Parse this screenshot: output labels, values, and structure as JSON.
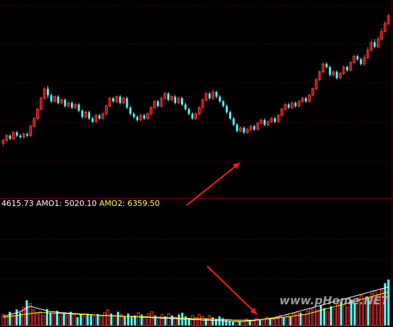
{
  "legend": {
    "vol_value": "4615.73",
    "amo1_label": "AMO1:",
    "amo1_value": "5020.10",
    "amo2_label": "AMO2:",
    "amo2_value": "6359.50"
  },
  "watermark": "www.pHome.NET",
  "colors": {
    "background": "#000000",
    "up": "#ff3232",
    "down": "#54fcfc",
    "ma1": "#ffffff",
    "ma2": "#ffff00",
    "grid": "#7a0000",
    "arrow": "#ff1a1a",
    "legend_text": "#ffffff",
    "legend_amo2": "#ffff54"
  },
  "chart_data": [
    {
      "type": "candlestick",
      "title": "",
      "y_range": [
        0,
        100
      ],
      "grid": "horizontal dotted",
      "annotation": "red arrow pointing at local low",
      "candles": [
        [
          17,
          19,
          15,
          20
        ],
        [
          19,
          22,
          18,
          23
        ],
        [
          22,
          20,
          19,
          23
        ],
        [
          20,
          24,
          19,
          25
        ],
        [
          24,
          22,
          21,
          25
        ],
        [
          22,
          21,
          20,
          23
        ],
        [
          21,
          23,
          20,
          24
        ],
        [
          23,
          22,
          21,
          24
        ],
        [
          22,
          28,
          21,
          29
        ],
        [
          28,
          33,
          27,
          34
        ],
        [
          33,
          39,
          32,
          40
        ],
        [
          39,
          46,
          38,
          47
        ],
        [
          46,
          52,
          45,
          53
        ],
        [
          52,
          48,
          46,
          54
        ],
        [
          48,
          44,
          43,
          49
        ],
        [
          44,
          47,
          43,
          48
        ],
        [
          47,
          43,
          42,
          48
        ],
        [
          43,
          45,
          42,
          46
        ],
        [
          45,
          41,
          40,
          46
        ],
        [
          41,
          43,
          40,
          44
        ],
        [
          43,
          40,
          39,
          44
        ],
        [
          40,
          42,
          39,
          43
        ],
        [
          42,
          38,
          37,
          43
        ],
        [
          38,
          34,
          33,
          39
        ],
        [
          34,
          37,
          33,
          38
        ],
        [
          37,
          33,
          32,
          38
        ],
        [
          33,
          31,
          30,
          34
        ],
        [
          31,
          35,
          30,
          36
        ],
        [
          35,
          33,
          32,
          36
        ],
        [
          33,
          36,
          32,
          37
        ],
        [
          36,
          41,
          35,
          42
        ],
        [
          41,
          46,
          40,
          47
        ],
        [
          46,
          44,
          43,
          47
        ],
        [
          44,
          47,
          43,
          48
        ],
        [
          47,
          43,
          42,
          48
        ],
        [
          43,
          46,
          42,
          47
        ],
        [
          46,
          40,
          39,
          47
        ],
        [
          40,
          36,
          35,
          41
        ],
        [
          36,
          34,
          33,
          37
        ],
        [
          34,
          32,
          31,
          35
        ],
        [
          32,
          35,
          31,
          36
        ],
        [
          35,
          33,
          32,
          36
        ],
        [
          33,
          36,
          32,
          37
        ],
        [
          36,
          40,
          35,
          41
        ],
        [
          40,
          44,
          39,
          45
        ],
        [
          44,
          41,
          40,
          45
        ],
        [
          41,
          46,
          40,
          47
        ],
        [
          46,
          49,
          45,
          50
        ],
        [
          49,
          45,
          44,
          50
        ],
        [
          45,
          47,
          44,
          48
        ],
        [
          47,
          43,
          42,
          48
        ],
        [
          43,
          46,
          42,
          47
        ],
        [
          46,
          42,
          41,
          47
        ],
        [
          42,
          39,
          38,
          43
        ],
        [
          39,
          36,
          35,
          40
        ],
        [
          36,
          33,
          32,
          37
        ],
        [
          33,
          36,
          32,
          37
        ],
        [
          36,
          40,
          35,
          41
        ],
        [
          40,
          45,
          39,
          46
        ],
        [
          45,
          49,
          44,
          50
        ],
        [
          49,
          46,
          45,
          50
        ],
        [
          46,
          50,
          45,
          52
        ],
        [
          50,
          47,
          46,
          51
        ],
        [
          47,
          44,
          43,
          48
        ],
        [
          44,
          41,
          40,
          45
        ],
        [
          41,
          37,
          36,
          42
        ],
        [
          37,
          33,
          32,
          38
        ],
        [
          33,
          29,
          28,
          34
        ],
        [
          29,
          25,
          24,
          30
        ],
        [
          25,
          27,
          24,
          28
        ],
        [
          27,
          24,
          23,
          28
        ],
        [
          24,
          26,
          23,
          27
        ],
        [
          26,
          28,
          25,
          29
        ],
        [
          28,
          26,
          25,
          29
        ],
        [
          26,
          30,
          25,
          31
        ],
        [
          30,
          32,
          29,
          33
        ],
        [
          32,
          29,
          28,
          33
        ],
        [
          29,
          31,
          28,
          32
        ],
        [
          31,
          33,
          30,
          34
        ],
        [
          33,
          31,
          30,
          34
        ],
        [
          31,
          35,
          30,
          36
        ],
        [
          35,
          39,
          34,
          40
        ],
        [
          39,
          42,
          38,
          43
        ],
        [
          42,
          40,
          39,
          43
        ],
        [
          40,
          43,
          39,
          44
        ],
        [
          43,
          41,
          40,
          44
        ],
        [
          41,
          44,
          40,
          45
        ],
        [
          44,
          46,
          43,
          47
        ],
        [
          46,
          44,
          43,
          47
        ],
        [
          44,
          48,
          43,
          49
        ],
        [
          48,
          52,
          47,
          53
        ],
        [
          52,
          58,
          51,
          59
        ],
        [
          58,
          63,
          57,
          64
        ],
        [
          63,
          68,
          62,
          69
        ],
        [
          68,
          66,
          65,
          69
        ],
        [
          66,
          61,
          60,
          67
        ],
        [
          61,
          63,
          60,
          64
        ],
        [
          63,
          59,
          58,
          64
        ],
        [
          59,
          62,
          58,
          63
        ],
        [
          62,
          66,
          61,
          67
        ],
        [
          66,
          64,
          63,
          67
        ],
        [
          64,
          69,
          63,
          70
        ],
        [
          69,
          73,
          68,
          74
        ],
        [
          73,
          71,
          70,
          74
        ],
        [
          71,
          68,
          67,
          72
        ],
        [
          68,
          72,
          67,
          74
        ],
        [
          72,
          77,
          71,
          79
        ],
        [
          77,
          82,
          76,
          84
        ],
        [
          82,
          79,
          78,
          84
        ],
        [
          79,
          84,
          78,
          86
        ],
        [
          84,
          89,
          83,
          91
        ],
        [
          89,
          94,
          88,
          96
        ],
        [
          94,
          99,
          93,
          100
        ]
      ]
    },
    {
      "type": "bar",
      "title": "",
      "y_range": [
        0,
        100
      ],
      "grid": "horizontal dotted",
      "annotation": "red arrow pointing at volume low",
      "series": [
        {
          "name": "AMO1",
          "values": [
            20,
            22,
            24,
            26,
            28,
            30,
            34,
            38,
            42,
            40,
            38,
            36,
            34,
            32,
            30,
            30,
            29,
            28,
            28,
            27,
            27,
            26,
            26,
            25,
            25,
            24,
            24,
            23,
            23,
            22,
            22,
            22,
            21,
            21,
            21,
            20,
            20,
            20,
            19,
            19,
            19,
            18,
            18,
            18,
            17,
            17,
            17,
            16,
            16,
            16,
            15,
            15,
            15,
            14,
            14,
            14,
            13,
            13,
            13,
            12,
            12,
            12,
            11,
            11,
            11,
            10,
            10,
            10,
            9,
            9,
            9,
            9,
            10,
            10,
            11,
            12,
            13,
            14,
            15,
            16,
            17,
            18,
            20,
            22,
            24,
            26,
            28,
            30,
            32,
            34,
            36,
            38,
            40,
            42,
            44,
            46,
            48,
            50,
            52,
            54,
            56,
            58,
            60,
            62,
            64,
            66,
            68,
            70,
            72,
            74,
            76,
            78,
            80,
            82,
            84
          ]
        },
        {
          "name": "AMO2",
          "values": [
            18,
            19,
            20,
            21,
            22,
            23,
            24,
            25,
            26,
            27,
            28,
            28,
            28,
            28,
            27,
            27,
            27,
            26,
            26,
            26,
            25,
            25,
            25,
            24,
            24,
            24,
            23,
            23,
            23,
            22,
            22,
            22,
            21,
            21,
            21,
            21,
            20,
            20,
            20,
            20,
            19,
            19,
            19,
            19,
            18,
            18,
            18,
            18,
            17,
            17,
            17,
            17,
            16,
            16,
            16,
            16,
            15,
            15,
            15,
            15,
            14,
            14,
            14,
            14,
            13,
            13,
            13,
            13,
            12,
            12,
            12,
            12,
            12,
            12,
            12,
            13,
            13,
            14,
            14,
            15,
            15,
            16,
            17,
            18,
            19,
            20,
            21,
            22,
            23,
            24,
            25,
            27,
            29,
            31,
            33,
            35,
            37,
            39,
            41,
            43,
            45,
            47,
            49,
            51,
            53,
            55,
            57,
            59,
            61,
            63,
            65,
            67,
            69,
            71,
            73
          ]
        }
      ],
      "values": [
        24,
        18,
        30,
        22,
        35,
        28,
        40,
        55,
        48,
        34,
        26,
        30,
        22,
        36,
        28,
        24,
        32,
        20,
        27,
        22,
        30,
        26,
        18,
        24,
        20,
        26,
        22,
        19,
        25,
        21,
        28,
        34,
        26,
        22,
        30,
        24,
        20,
        26,
        18,
        22,
        28,
        24,
        20,
        26,
        30,
        22,
        18,
        24,
        20,
        26,
        22,
        18,
        24,
        28,
        20,
        16,
        22,
        18,
        24,
        20,
        16,
        22,
        18,
        14,
        20,
        16,
        12,
        10,
        8,
        12,
        10,
        9,
        14,
        12,
        10,
        16,
        14,
        12,
        18,
        16,
        14,
        20,
        22,
        18,
        24,
        20,
        26,
        30,
        28,
        24,
        32,
        36,
        40,
        34,
        44,
        38,
        30,
        42,
        36,
        48,
        52,
        46,
        40,
        56,
        50,
        60,
        66,
        58,
        62,
        70,
        76,
        68,
        80,
        92,
        100
      ]
    }
  ]
}
